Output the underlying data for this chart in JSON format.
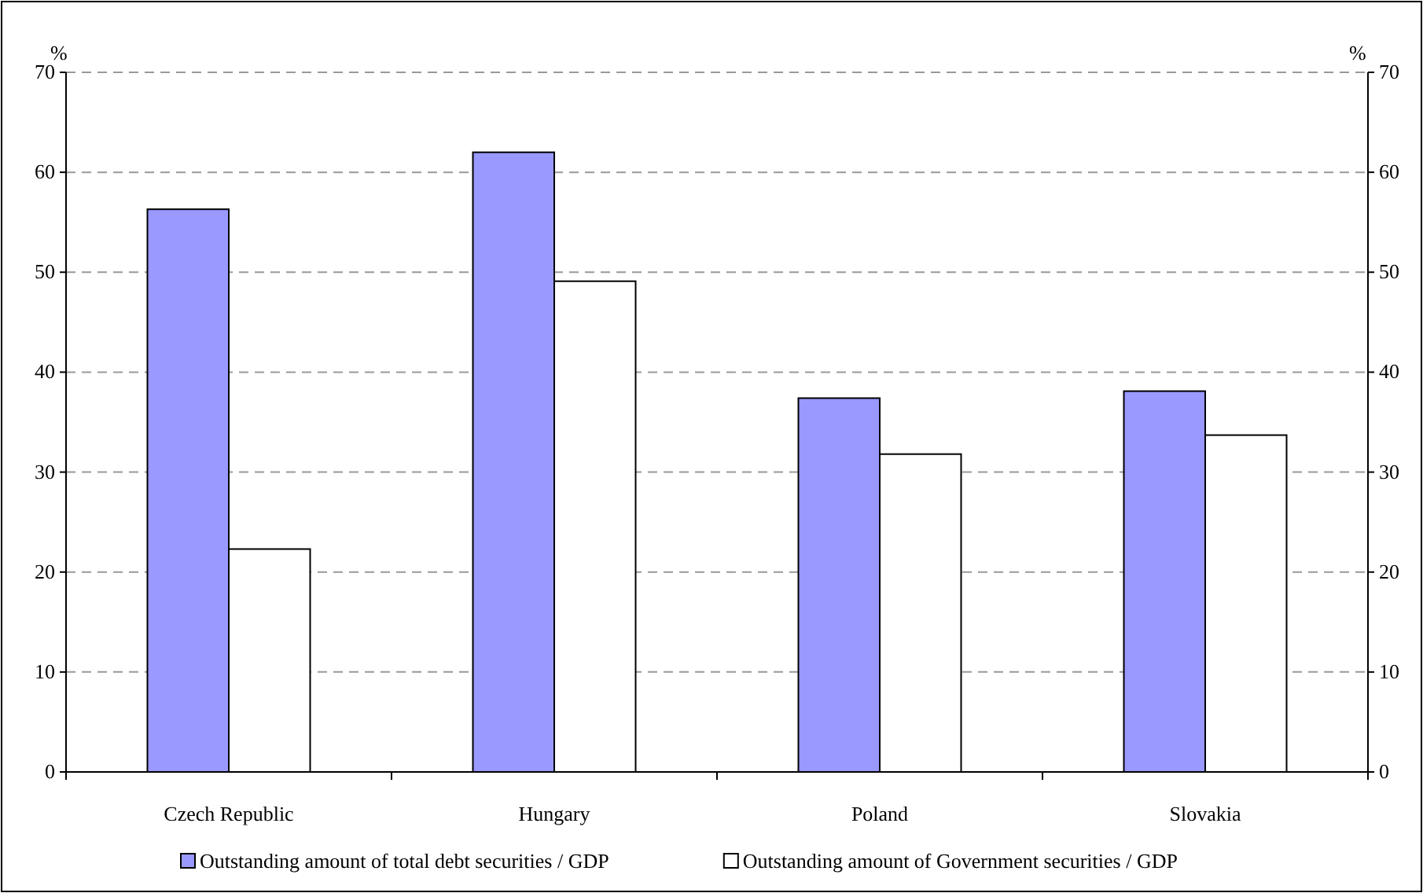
{
  "chart_data": {
    "type": "bar",
    "categories": [
      "Czech Republic",
      "Hungary",
      "Poland",
      "Slovakia"
    ],
    "series": [
      {
        "name": "Outstanding amount of total debt securities / GDP",
        "color": "#9999ff",
        "values": [
          56.3,
          62.0,
          37.4,
          38.1
        ]
      },
      {
        "name": "Outstanding amount of Government securities / GDP",
        "color": "#ffffff",
        "values": [
          22.3,
          49.1,
          31.8,
          33.7
        ]
      }
    ],
    "ylabel": "%",
    "y2label": "%",
    "ylim": [
      0,
      70
    ],
    "yticks": [
      0,
      10,
      20,
      30,
      40,
      50,
      60,
      70
    ],
    "y2lim": [
      0,
      70
    ],
    "y2ticks": [
      0,
      10,
      20,
      30,
      40,
      50,
      60,
      70
    ],
    "grid": "y",
    "legend": "bottom"
  }
}
